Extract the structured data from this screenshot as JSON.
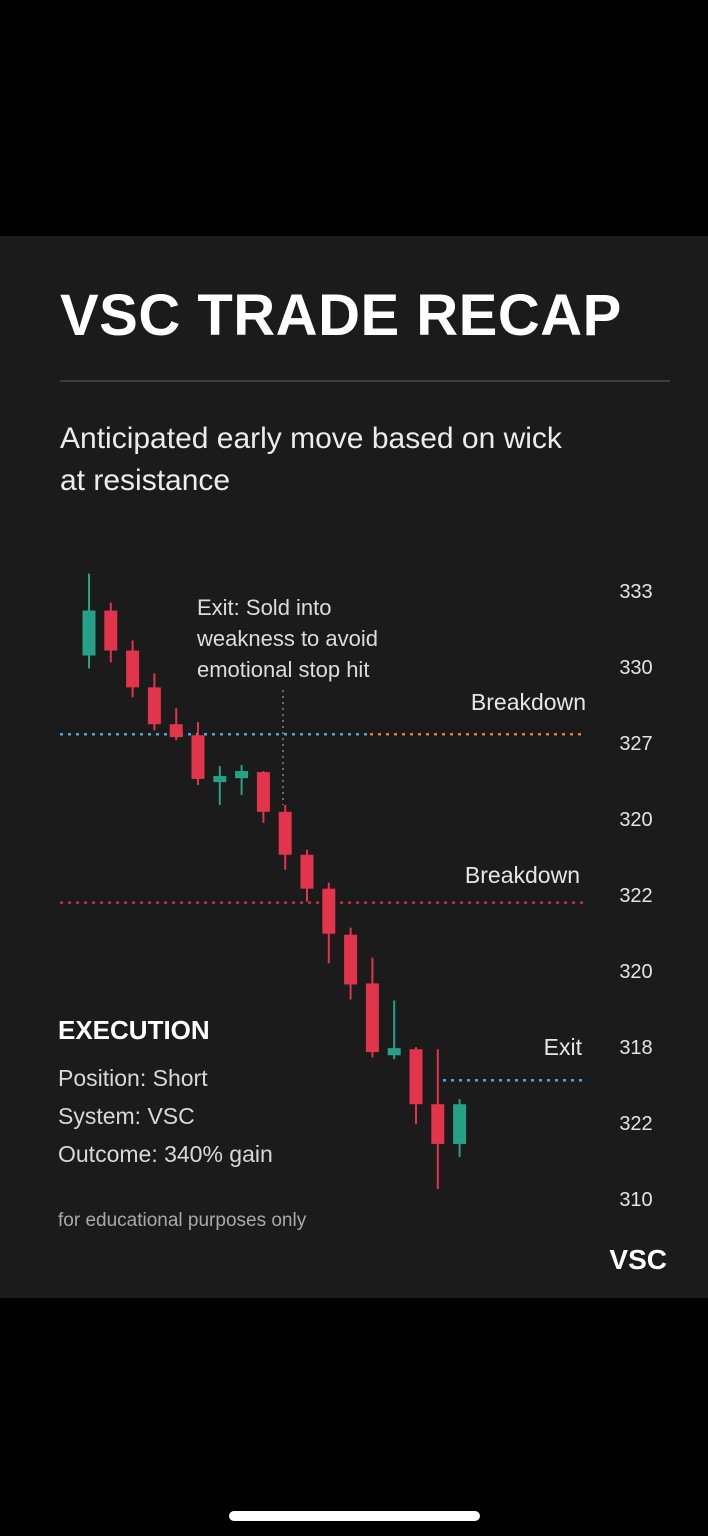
{
  "title": "VSC TRADE RECAP",
  "subtitle": "Anticipated early move based on wick at resistance",
  "chart_data": {
    "type": "candlestick",
    "ylim": [
      309.5,
      334.2
    ],
    "up_color": "#25a188",
    "down_color": "#e2344b",
    "open": [
      330.57,
      332.28,
      330.76,
      329.36,
      327.96,
      327.54,
      325.76,
      325.91,
      326.14,
      324.63,
      323.0,
      321.71,
      319.96,
      318.11,
      315.38,
      315.61,
      313.52,
      312.01
    ],
    "high": [
      333.68,
      332.58,
      331.14,
      329.89,
      328.57,
      328.04,
      326.37,
      326.41,
      326.18,
      324.89,
      323.19,
      321.94,
      320.23,
      319.09,
      317.46,
      315.69,
      315.61,
      313.71
    ],
    "low": [
      330.08,
      330.31,
      328.98,
      327.73,
      327.35,
      325.65,
      324.89,
      325.27,
      324.21,
      322.43,
      321.22,
      318.87,
      317.5,
      315.3,
      315.23,
      312.76,
      310.3,
      311.51
    ],
    "close": [
      332.28,
      330.76,
      329.36,
      327.96,
      327.47,
      325.88,
      325.99,
      326.18,
      324.63,
      323.0,
      321.71,
      320.0,
      318.07,
      315.5,
      315.65,
      313.52,
      312.01,
      313.52
    ],
    "levels": [
      {
        "value": 327.58,
        "color": "#4fa3e0"
      },
      {
        "value": 327.58,
        "color": "#e07a35"
      },
      {
        "value": 321.18,
        "color": "#c8304a"
      },
      {
        "value": 314.43,
        "color": "#4fa3e0"
      }
    ],
    "annotations": [
      "Exit: Sold into weakness to avoid emotional stop hit",
      "Breakdown",
      "Breakdown",
      "Exit"
    ],
    "price_labels": [
      333,
      330,
      327,
      320,
      322,
      320,
      318,
      322,
      310
    ]
  },
  "execution": {
    "heading": "EXECUTION",
    "lines": [
      "Position: Short",
      "System: VSC",
      "Outcome: 340% gain"
    ]
  },
  "disclaimer": "for educational purposes only",
  "brand": "VSC"
}
